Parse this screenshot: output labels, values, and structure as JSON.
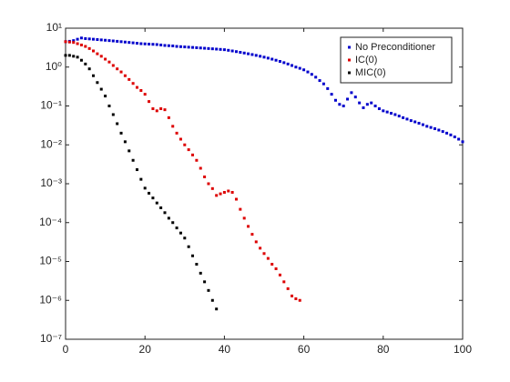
{
  "chart_data": {
    "type": "scatter",
    "log_y": true,
    "legend": "northeast",
    "xlim": [
      0,
      100
    ],
    "xticks": [
      0,
      20,
      40,
      60,
      80,
      100
    ],
    "ylim": [
      1e-07,
      10
    ],
    "yticks": [
      {
        "value": 1e-07,
        "label": "10⁻⁷"
      },
      {
        "value": 1e-06,
        "label": "10⁻⁶"
      },
      {
        "value": 1e-05,
        "label": "10⁻⁵"
      },
      {
        "value": 0.0001,
        "label": "10⁻⁴"
      },
      {
        "value": 0.001,
        "label": "10⁻³"
      },
      {
        "value": 0.01,
        "label": "10⁻²"
      },
      {
        "value": 0.1,
        "label": "10⁻¹"
      },
      {
        "value": 1,
        "label": "10⁰"
      },
      {
        "value": 10,
        "label": "10¹"
      }
    ],
    "series": [
      {
        "name": "No Preconditioner",
        "color": "#0000cc",
        "x": [
          0,
          1,
          2,
          3,
          4,
          5,
          6,
          7,
          8,
          9,
          10,
          11,
          12,
          13,
          14,
          15,
          16,
          17,
          18,
          19,
          20,
          21,
          22,
          23,
          24,
          25,
          26,
          27,
          28,
          29,
          30,
          31,
          32,
          33,
          34,
          35,
          36,
          37,
          38,
          39,
          40,
          41,
          42,
          43,
          44,
          45,
          46,
          47,
          48,
          49,
          50,
          51,
          52,
          53,
          54,
          55,
          56,
          57,
          58,
          59,
          60,
          61,
          62,
          63,
          64,
          65,
          66,
          67,
          68,
          69,
          70,
          71,
          72,
          73,
          74,
          75,
          76,
          77,
          78,
          79,
          80,
          81,
          82,
          83,
          84,
          85,
          86,
          87,
          88,
          89,
          90,
          91,
          92,
          93,
          94,
          95,
          96,
          97,
          98,
          99,
          100
        ],
        "values": [
          4.5,
          4.6,
          4.8,
          5.2,
          5.6,
          5.4,
          5.3,
          5.2,
          5.1,
          5.0,
          4.9,
          4.8,
          4.7,
          4.6,
          4.5,
          4.4,
          4.3,
          4.2,
          4.1,
          4.0,
          3.95,
          3.9,
          3.85,
          3.8,
          3.7,
          3.6,
          3.55,
          3.5,
          3.4,
          3.35,
          3.3,
          3.25,
          3.2,
          3.15,
          3.1,
          3.05,
          3.0,
          2.95,
          2.9,
          2.85,
          2.8,
          2.7,
          2.6,
          2.5,
          2.4,
          2.3,
          2.2,
          2.1,
          2.0,
          1.9,
          1.8,
          1.7,
          1.6,
          1.5,
          1.4,
          1.3,
          1.2,
          1.1,
          1.0,
          0.93,
          0.85,
          0.75,
          0.65,
          0.55,
          0.45,
          0.37,
          0.28,
          0.2,
          0.14,
          0.11,
          0.1,
          0.15,
          0.22,
          0.17,
          0.12,
          0.09,
          0.11,
          0.12,
          0.1,
          0.085,
          0.075,
          0.07,
          0.065,
          0.06,
          0.055,
          0.05,
          0.046,
          0.042,
          0.039,
          0.036,
          0.033,
          0.03,
          0.028,
          0.026,
          0.024,
          0.022,
          0.02,
          0.018,
          0.016,
          0.014,
          0.012
        ]
      },
      {
        "name": "IC(0)",
        "color": "#dd0000",
        "x": [
          0,
          1,
          2,
          3,
          4,
          5,
          6,
          7,
          8,
          9,
          10,
          11,
          12,
          13,
          14,
          15,
          16,
          17,
          18,
          19,
          20,
          21,
          22,
          23,
          24,
          25,
          26,
          27,
          28,
          29,
          30,
          31,
          32,
          33,
          34,
          35,
          36,
          37,
          38,
          39,
          40,
          41,
          42,
          43,
          44,
          45,
          46,
          47,
          48,
          49,
          50,
          51,
          52,
          53,
          54,
          55,
          56,
          57,
          58,
          59
        ],
        "values": [
          4.5,
          4.4,
          4.3,
          4.0,
          3.7,
          3.4,
          3.0,
          2.6,
          2.2,
          1.9,
          1.6,
          1.35,
          1.1,
          0.9,
          0.75,
          0.6,
          0.48,
          0.38,
          0.3,
          0.25,
          0.2,
          0.13,
          0.085,
          0.075,
          0.085,
          0.08,
          0.05,
          0.03,
          0.02,
          0.014,
          0.01,
          0.0075,
          0.0055,
          0.004,
          0.0025,
          0.0015,
          0.001,
          0.00075,
          0.0005,
          0.00055,
          0.0006,
          0.00065,
          0.0006,
          0.0004,
          0.00022,
          0.00013,
          8e-05,
          5e-05,
          3.2e-05,
          2.2e-05,
          1.6e-05,
          1.2e-05,
          8.5e-06,
          6.5e-06,
          4.5e-06,
          3e-06,
          2e-06,
          1.3e-06,
          1.1e-06,
          1e-06
        ]
      },
      {
        "name": "MIC(0)",
        "color": "#000000",
        "x": [
          0,
          1,
          2,
          3,
          4,
          5,
          6,
          7,
          8,
          9,
          10,
          11,
          12,
          13,
          14,
          15,
          16,
          17,
          18,
          19,
          20,
          21,
          22,
          23,
          24,
          25,
          26,
          27,
          28,
          29,
          30,
          31,
          32,
          33,
          34,
          35,
          36,
          37,
          38
        ],
        "values": [
          2.0,
          2.0,
          1.9,
          1.8,
          1.5,
          1.2,
          0.9,
          0.6,
          0.4,
          0.27,
          0.18,
          0.1,
          0.06,
          0.035,
          0.02,
          0.012,
          0.007,
          0.004,
          0.0023,
          0.0013,
          0.00077,
          0.00057,
          0.00043,
          0.00032,
          0.00024,
          0.00018,
          0.00013,
          0.0001,
          7.3e-05,
          5.4e-05,
          4e-05,
          2.4e-05,
          1.4e-05,
          8.5e-06,
          5e-06,
          3e-06,
          1.8e-06,
          1e-06,
          6e-07
        ]
      }
    ]
  }
}
